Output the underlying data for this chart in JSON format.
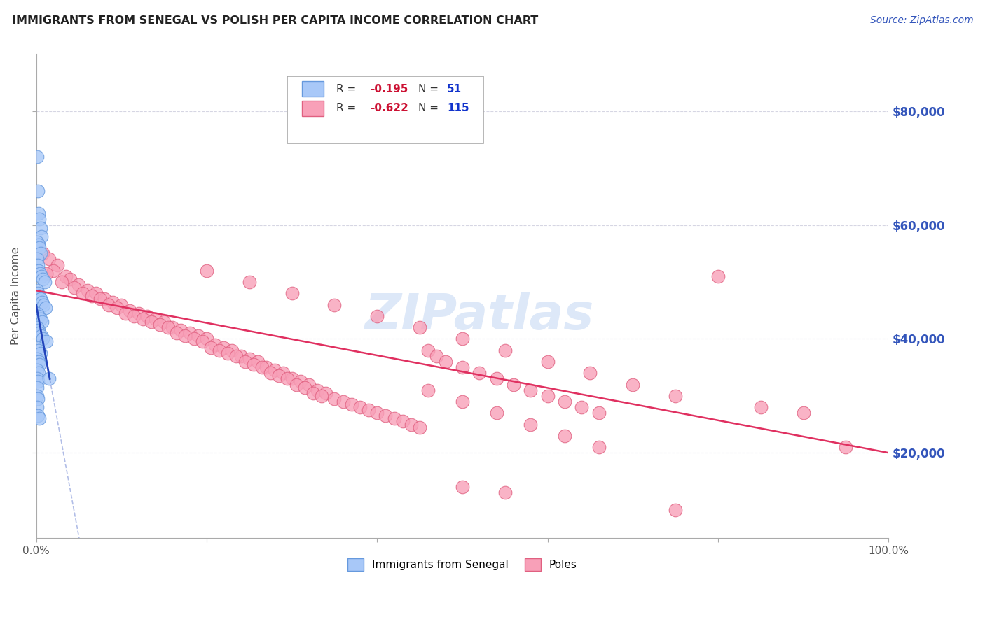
{
  "title": "IMMIGRANTS FROM SENEGAL VS POLISH PER CAPITA INCOME CORRELATION CHART",
  "source": "Source: ZipAtlas.com",
  "ylabel": "Per Capita Income",
  "y_ticks": [
    20000,
    40000,
    60000,
    80000
  ],
  "y_tick_labels": [
    "$20,000",
    "$40,000",
    "$60,000",
    "$80,000"
  ],
  "xlim": [
    0.0,
    100.0
  ],
  "ylim": [
    5000,
    90000
  ],
  "senegal_color": "#a8c8f8",
  "senegal_edge": "#6699dd",
  "poles_color": "#f8a0b8",
  "poles_edge": "#e06080",
  "senegal_line_color": "#2244bb",
  "poles_line_color": "#e03060",
  "watermark_color": "#dde8f8",
  "background_color": "#ffffff",
  "grid_color": "#ccccdd",
  "title_color": "#222222",
  "right_tick_color": "#3355bb",
  "legend_R_color": "#cc1133",
  "legend_N_color": "#1133cc",
  "senegal_dots": [
    [
      0.15,
      72000
    ],
    [
      0.2,
      66000
    ],
    [
      0.3,
      62000
    ],
    [
      0.4,
      61000
    ],
    [
      0.5,
      59500
    ],
    [
      0.6,
      58000
    ],
    [
      0.15,
      57000
    ],
    [
      0.25,
      56500
    ],
    [
      0.35,
      56000
    ],
    [
      0.5,
      55000
    ],
    [
      0.1,
      54000
    ],
    [
      0.2,
      53000
    ],
    [
      0.3,
      52000
    ],
    [
      0.45,
      51500
    ],
    [
      0.6,
      51000
    ],
    [
      0.8,
      50500
    ],
    [
      1.0,
      50000
    ],
    [
      0.1,
      48500
    ],
    [
      0.2,
      48000
    ],
    [
      0.35,
      47500
    ],
    [
      0.5,
      47000
    ],
    [
      0.7,
      46500
    ],
    [
      0.9,
      46000
    ],
    [
      1.1,
      45500
    ],
    [
      0.15,
      44500
    ],
    [
      0.3,
      44000
    ],
    [
      0.5,
      43500
    ],
    [
      0.7,
      43000
    ],
    [
      0.1,
      42000
    ],
    [
      0.25,
      41500
    ],
    [
      0.4,
      41000
    ],
    [
      0.6,
      40500
    ],
    [
      0.8,
      40000
    ],
    [
      1.2,
      39500
    ],
    [
      0.15,
      38500
    ],
    [
      0.3,
      38000
    ],
    [
      0.5,
      37500
    ],
    [
      0.1,
      36500
    ],
    [
      0.25,
      36000
    ],
    [
      0.4,
      35500
    ],
    [
      0.15,
      34500
    ],
    [
      0.3,
      34000
    ],
    [
      0.1,
      33000
    ],
    [
      0.2,
      32500
    ],
    [
      0.15,
      31500
    ],
    [
      0.1,
      30000
    ],
    [
      0.2,
      29500
    ],
    [
      0.15,
      28000
    ],
    [
      0.2,
      26500
    ],
    [
      0.35,
      26000
    ],
    [
      1.5,
      33000
    ]
  ],
  "poles_dots": [
    [
      0.8,
      55000
    ],
    [
      1.5,
      54000
    ],
    [
      2.5,
      53000
    ],
    [
      2.0,
      52000
    ],
    [
      3.5,
      51000
    ],
    [
      1.2,
      51500
    ],
    [
      4.0,
      50500
    ],
    [
      3.0,
      50000
    ],
    [
      5.0,
      49500
    ],
    [
      4.5,
      49000
    ],
    [
      6.0,
      48500
    ],
    [
      5.5,
      48000
    ],
    [
      7.0,
      48000
    ],
    [
      6.5,
      47500
    ],
    [
      8.0,
      47000
    ],
    [
      7.5,
      47000
    ],
    [
      9.0,
      46500
    ],
    [
      8.5,
      46000
    ],
    [
      10.0,
      46000
    ],
    [
      9.5,
      45500
    ],
    [
      11.0,
      45000
    ],
    [
      10.5,
      44500
    ],
    [
      12.0,
      44500
    ],
    [
      11.5,
      44000
    ],
    [
      13.0,
      44000
    ],
    [
      12.5,
      43500
    ],
    [
      14.0,
      43500
    ],
    [
      13.5,
      43000
    ],
    [
      15.0,
      43000
    ],
    [
      14.5,
      42500
    ],
    [
      16.0,
      42000
    ],
    [
      15.5,
      42000
    ],
    [
      17.0,
      41500
    ],
    [
      16.5,
      41000
    ],
    [
      18.0,
      41000
    ],
    [
      17.5,
      40500
    ],
    [
      19.0,
      40500
    ],
    [
      18.5,
      40000
    ],
    [
      20.0,
      40000
    ],
    [
      19.5,
      39500
    ],
    [
      21.0,
      39000
    ],
    [
      20.5,
      38500
    ],
    [
      22.0,
      38500
    ],
    [
      21.5,
      38000
    ],
    [
      23.0,
      38000
    ],
    [
      22.5,
      37500
    ],
    [
      24.0,
      37000
    ],
    [
      23.5,
      37000
    ],
    [
      25.0,
      36500
    ],
    [
      24.5,
      36000
    ],
    [
      26.0,
      36000
    ],
    [
      25.5,
      35500
    ],
    [
      27.0,
      35000
    ],
    [
      26.5,
      35000
    ],
    [
      28.0,
      34500
    ],
    [
      27.5,
      34000
    ],
    [
      29.0,
      34000
    ],
    [
      28.5,
      33500
    ],
    [
      30.0,
      33000
    ],
    [
      29.5,
      33000
    ],
    [
      31.0,
      32500
    ],
    [
      30.5,
      32000
    ],
    [
      32.0,
      32000
    ],
    [
      31.5,
      31500
    ],
    [
      33.0,
      31000
    ],
    [
      32.5,
      30500
    ],
    [
      34.0,
      30500
    ],
    [
      33.5,
      30000
    ],
    [
      35.0,
      29500
    ],
    [
      36.0,
      29000
    ],
    [
      37.0,
      28500
    ],
    [
      38.0,
      28000
    ],
    [
      39.0,
      27500
    ],
    [
      40.0,
      27000
    ],
    [
      41.0,
      26500
    ],
    [
      42.0,
      26000
    ],
    [
      43.0,
      25500
    ],
    [
      44.0,
      25000
    ],
    [
      45.0,
      24500
    ],
    [
      46.0,
      38000
    ],
    [
      47.0,
      37000
    ],
    [
      48.0,
      36000
    ],
    [
      50.0,
      35000
    ],
    [
      52.0,
      34000
    ],
    [
      54.0,
      33000
    ],
    [
      56.0,
      32000
    ],
    [
      58.0,
      31000
    ],
    [
      60.0,
      30000
    ],
    [
      62.0,
      29000
    ],
    [
      64.0,
      28000
    ],
    [
      66.0,
      27000
    ],
    [
      46.0,
      31000
    ],
    [
      50.0,
      29000
    ],
    [
      54.0,
      27000
    ],
    [
      58.0,
      25000
    ],
    [
      62.0,
      23000
    ],
    [
      66.0,
      21000
    ],
    [
      20.0,
      52000
    ],
    [
      25.0,
      50000
    ],
    [
      30.0,
      48000
    ],
    [
      35.0,
      46000
    ],
    [
      40.0,
      44000
    ],
    [
      45.0,
      42000
    ],
    [
      50.0,
      40000
    ],
    [
      55.0,
      38000
    ],
    [
      60.0,
      36000
    ],
    [
      65.0,
      34000
    ],
    [
      70.0,
      32000
    ],
    [
      75.0,
      30000
    ],
    [
      80.0,
      51000
    ],
    [
      85.0,
      28000
    ],
    [
      90.0,
      27000
    ],
    [
      50.0,
      14000
    ],
    [
      55.0,
      13000
    ],
    [
      75.0,
      10000
    ],
    [
      95.0,
      21000
    ]
  ]
}
